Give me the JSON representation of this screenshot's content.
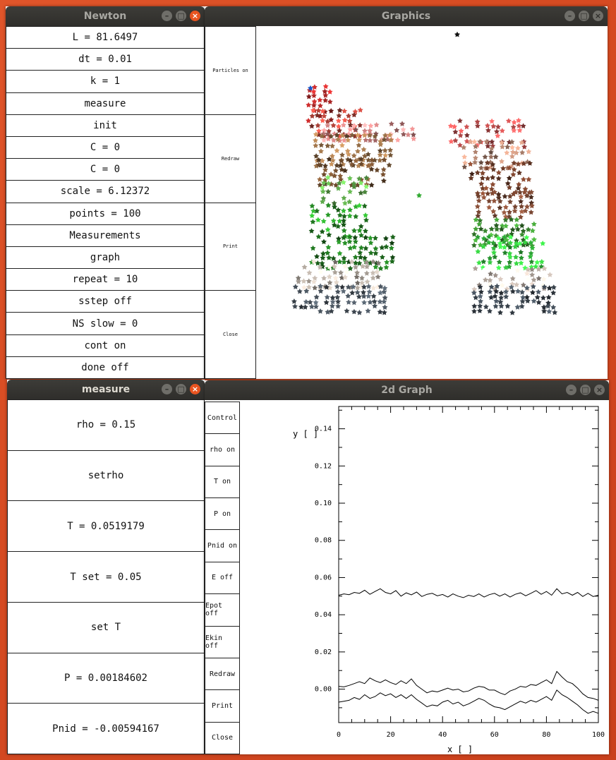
{
  "newton": {
    "title": "Newton",
    "items": [
      "L = 81.6497",
      "dt = 0.01",
      "k = 1",
      "measure",
      "init",
      "C = 0",
      "C = 0",
      "scale = 6.12372",
      "points = 100",
      "Measurements",
      "graph",
      "repeat = 10",
      "sstep off",
      "NS slow = 0",
      "cont on",
      "done off"
    ]
  },
  "graphics": {
    "title": "Graphics",
    "buttons": [
      "Particles on",
      "Redraw",
      "Print",
      "Close"
    ]
  },
  "measure": {
    "title": "measure",
    "items": [
      "rho = 0.15",
      "setrho",
      "T = 0.0519179",
      "T set = 0.05",
      "set T",
      "P = 0.00184602",
      "Pnid = -0.00594167"
    ]
  },
  "graph2d": {
    "title": "2d Graph",
    "buttons": [
      "Control",
      "rho on",
      "T on",
      "P on",
      "Pnid on",
      "E off",
      "Epot off",
      "Ekin off",
      "Redraw",
      "Print",
      "Close"
    ]
  },
  "window_buttons": {
    "minimize": "–",
    "maximize": "□",
    "close": "×"
  },
  "chart_data": {
    "type": "line",
    "xlabel": "x [ ]",
    "ylabel": "y [ ]",
    "xlim": [
      0,
      100
    ],
    "ylim": [
      -0.018,
      0.152
    ],
    "xticks": [
      "0",
      "20",
      "40",
      "60",
      "80",
      "100"
    ],
    "yticks": [
      "0.00",
      "0.02",
      "0.04",
      "0.06",
      "0.08",
      "0.10",
      "0.12",
      "0.14"
    ],
    "x": [
      0,
      2,
      4,
      6,
      8,
      10,
      12,
      14,
      16,
      18,
      20,
      22,
      24,
      26,
      28,
      30,
      32,
      34,
      36,
      38,
      40,
      42,
      44,
      46,
      48,
      50,
      52,
      54,
      56,
      58,
      60,
      62,
      64,
      66,
      68,
      70,
      72,
      74,
      76,
      78,
      80,
      82,
      84,
      86,
      88,
      90,
      92,
      94,
      96,
      98,
      100
    ],
    "series": [
      {
        "values": [
          0.0505,
          0.0512,
          0.0508,
          0.052,
          0.0515,
          0.0532,
          0.051,
          0.0525,
          0.054,
          0.052,
          0.0512,
          0.053,
          0.05,
          0.0518,
          0.0507,
          0.0522,
          0.0498,
          0.051,
          0.0515,
          0.0502,
          0.0509,
          0.0495,
          0.0512,
          0.05,
          0.0492,
          0.0505,
          0.0498,
          0.0512,
          0.0495,
          0.0508,
          0.0515,
          0.05,
          0.0512,
          0.0495,
          0.051,
          0.0518,
          0.0502,
          0.0515,
          0.053,
          0.051,
          0.0525,
          0.0505,
          0.054,
          0.0512,
          0.052,
          0.0505,
          0.052,
          0.0498,
          0.0515,
          0.0498,
          0.0505
        ]
      },
      {
        "values": [
          0.0015,
          0.0012,
          0.002,
          0.003,
          0.004,
          0.003,
          0.006,
          0.0045,
          0.0035,
          0.005,
          0.0035,
          0.0025,
          0.0045,
          0.003,
          0.0055,
          0.002,
          0.0,
          -0.002,
          -0.001,
          -0.0015,
          -0.0005,
          0.0005,
          -0.0005,
          0.0,
          -0.0015,
          -0.001,
          0.0005,
          0.0015,
          0.001,
          -0.0005,
          -0.0005,
          -0.002,
          -0.003,
          -0.001,
          0.0,
          0.0015,
          0.001,
          0.0025,
          0.002,
          0.0035,
          0.005,
          0.003,
          0.0095,
          0.0065,
          0.004,
          0.003,
          0.0005,
          -0.0025,
          -0.0045,
          -0.005,
          -0.006
        ]
      },
      {
        "values": [
          -0.007,
          -0.0065,
          -0.006,
          -0.0045,
          -0.0055,
          -0.003,
          -0.005,
          -0.004,
          -0.002,
          -0.0035,
          -0.0025,
          -0.0045,
          -0.003,
          -0.005,
          -0.003,
          -0.0055,
          -0.0075,
          -0.0095,
          -0.0085,
          -0.009,
          -0.007,
          -0.006,
          -0.008,
          -0.007,
          -0.009,
          -0.008,
          -0.0065,
          -0.005,
          -0.006,
          -0.008,
          -0.0095,
          -0.01,
          -0.011,
          -0.0095,
          -0.008,
          -0.0065,
          -0.0075,
          -0.006,
          -0.007,
          -0.0055,
          -0.004,
          -0.006,
          -0.0005,
          -0.003,
          -0.0045,
          -0.0065,
          -0.0085,
          -0.011,
          -0.013,
          -0.012,
          -0.013
        ]
      }
    ]
  }
}
